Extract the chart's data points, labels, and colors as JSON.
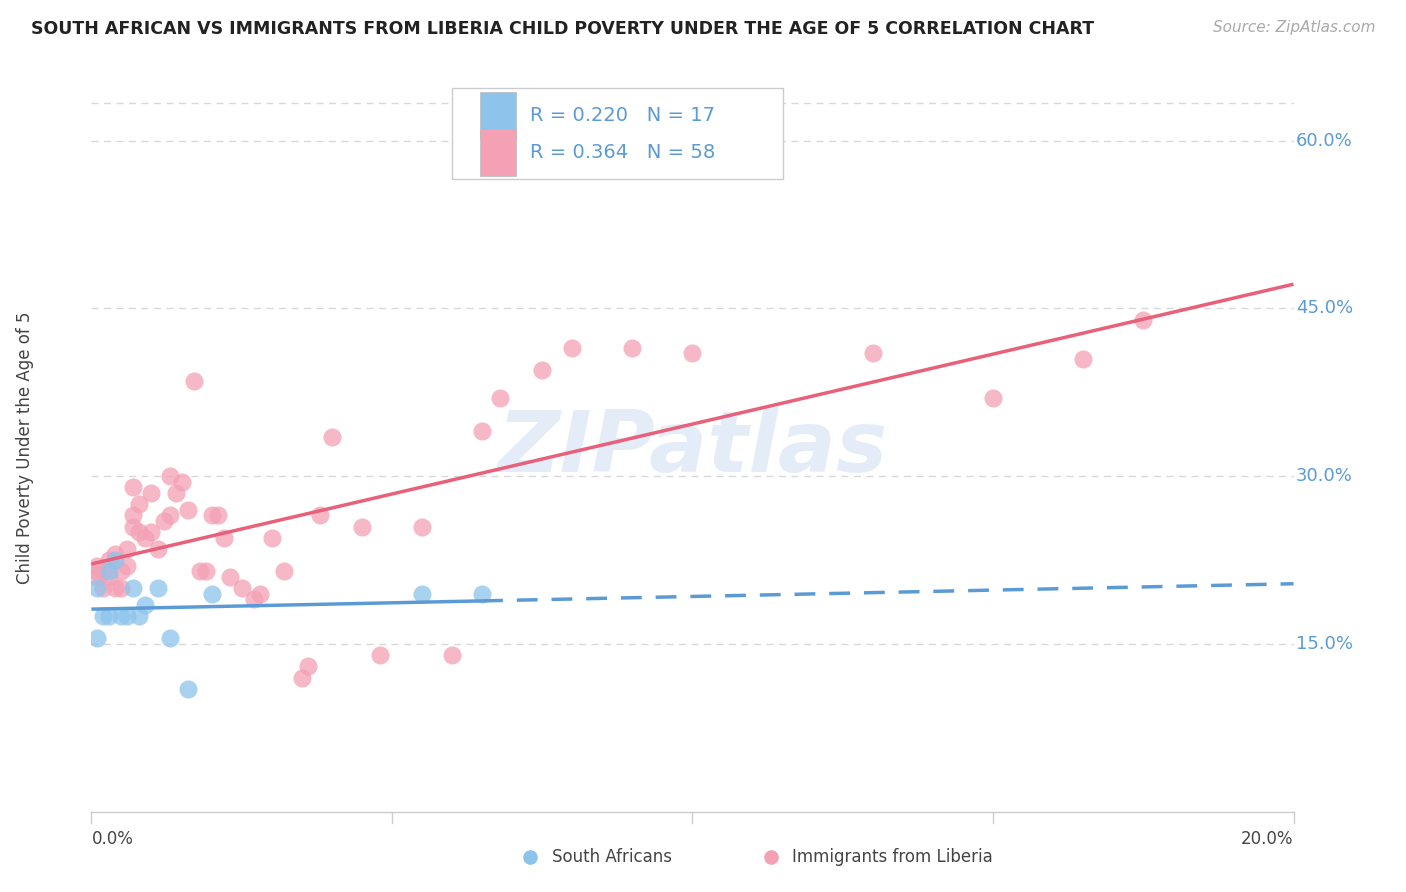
{
  "title": "SOUTH AFRICAN VS IMMIGRANTS FROM LIBERIA CHILD POVERTY UNDER THE AGE OF 5 CORRELATION CHART",
  "source": "Source: ZipAtlas.com",
  "ylabel": "Child Poverty Under the Age of 5",
  "watermark": "ZIPatlas",
  "legend_r1": "R = 0.220",
  "legend_n1": "N = 17",
  "legend_r2": "R = 0.364",
  "legend_n2": "N = 58",
  "label1": "South Africans",
  "label2": "Immigrants from Liberia",
  "ytick_vals": [
    0.15,
    0.3,
    0.45,
    0.6
  ],
  "ytick_labels": [
    "15.0%",
    "30.0%",
    "45.0%",
    "60.0%"
  ],
  "xtick_left": "0.0%",
  "xtick_right": "20.0%",
  "color_sa": "#8DC4EC",
  "color_lib": "#F4A0B5",
  "color_line_sa": "#5B9BD5",
  "color_line_lib": "#E8607A",
  "sa_x": [
    0.001,
    0.001,
    0.002,
    0.003,
    0.003,
    0.004,
    0.005,
    0.006,
    0.007,
    0.008,
    0.009,
    0.011,
    0.013,
    0.016,
    0.02,
    0.055,
    0.065
  ],
  "sa_y": [
    0.2,
    0.155,
    0.175,
    0.175,
    0.215,
    0.225,
    0.175,
    0.175,
    0.2,
    0.175,
    0.185,
    0.2,
    0.155,
    0.11,
    0.195,
    0.195,
    0.195
  ],
  "lib_x": [
    0.001,
    0.001,
    0.001,
    0.002,
    0.002,
    0.003,
    0.003,
    0.004,
    0.004,
    0.005,
    0.005,
    0.006,
    0.006,
    0.007,
    0.007,
    0.007,
    0.008,
    0.008,
    0.009,
    0.01,
    0.01,
    0.011,
    0.012,
    0.013,
    0.013,
    0.014,
    0.015,
    0.016,
    0.017,
    0.018,
    0.019,
    0.02,
    0.021,
    0.022,
    0.023,
    0.025,
    0.027,
    0.028,
    0.03,
    0.032,
    0.035,
    0.036,
    0.038,
    0.04,
    0.045,
    0.048,
    0.055,
    0.06,
    0.065,
    0.068,
    0.075,
    0.08,
    0.09,
    0.1,
    0.13,
    0.15,
    0.165,
    0.175
  ],
  "lib_y": [
    0.215,
    0.21,
    0.22,
    0.2,
    0.215,
    0.21,
    0.225,
    0.2,
    0.23,
    0.2,
    0.215,
    0.22,
    0.235,
    0.265,
    0.255,
    0.29,
    0.25,
    0.275,
    0.245,
    0.25,
    0.285,
    0.235,
    0.26,
    0.265,
    0.3,
    0.285,
    0.295,
    0.27,
    0.385,
    0.215,
    0.215,
    0.265,
    0.265,
    0.245,
    0.21,
    0.2,
    0.19,
    0.195,
    0.245,
    0.215,
    0.12,
    0.13,
    0.265,
    0.335,
    0.255,
    0.14,
    0.255,
    0.14,
    0.34,
    0.37,
    0.395,
    0.415,
    0.415,
    0.41,
    0.41,
    0.37,
    0.405,
    0.44
  ],
  "xmin": 0.0,
  "xmax": 0.2,
  "ymin": 0.0,
  "ymax": 0.65,
  "background": "#FFFFFF",
  "grid_color": "#D8D8D8",
  "text_color_blue": "#5B9BD5",
  "text_color_dark": "#444444",
  "text_color_source": "#AAAAAA"
}
